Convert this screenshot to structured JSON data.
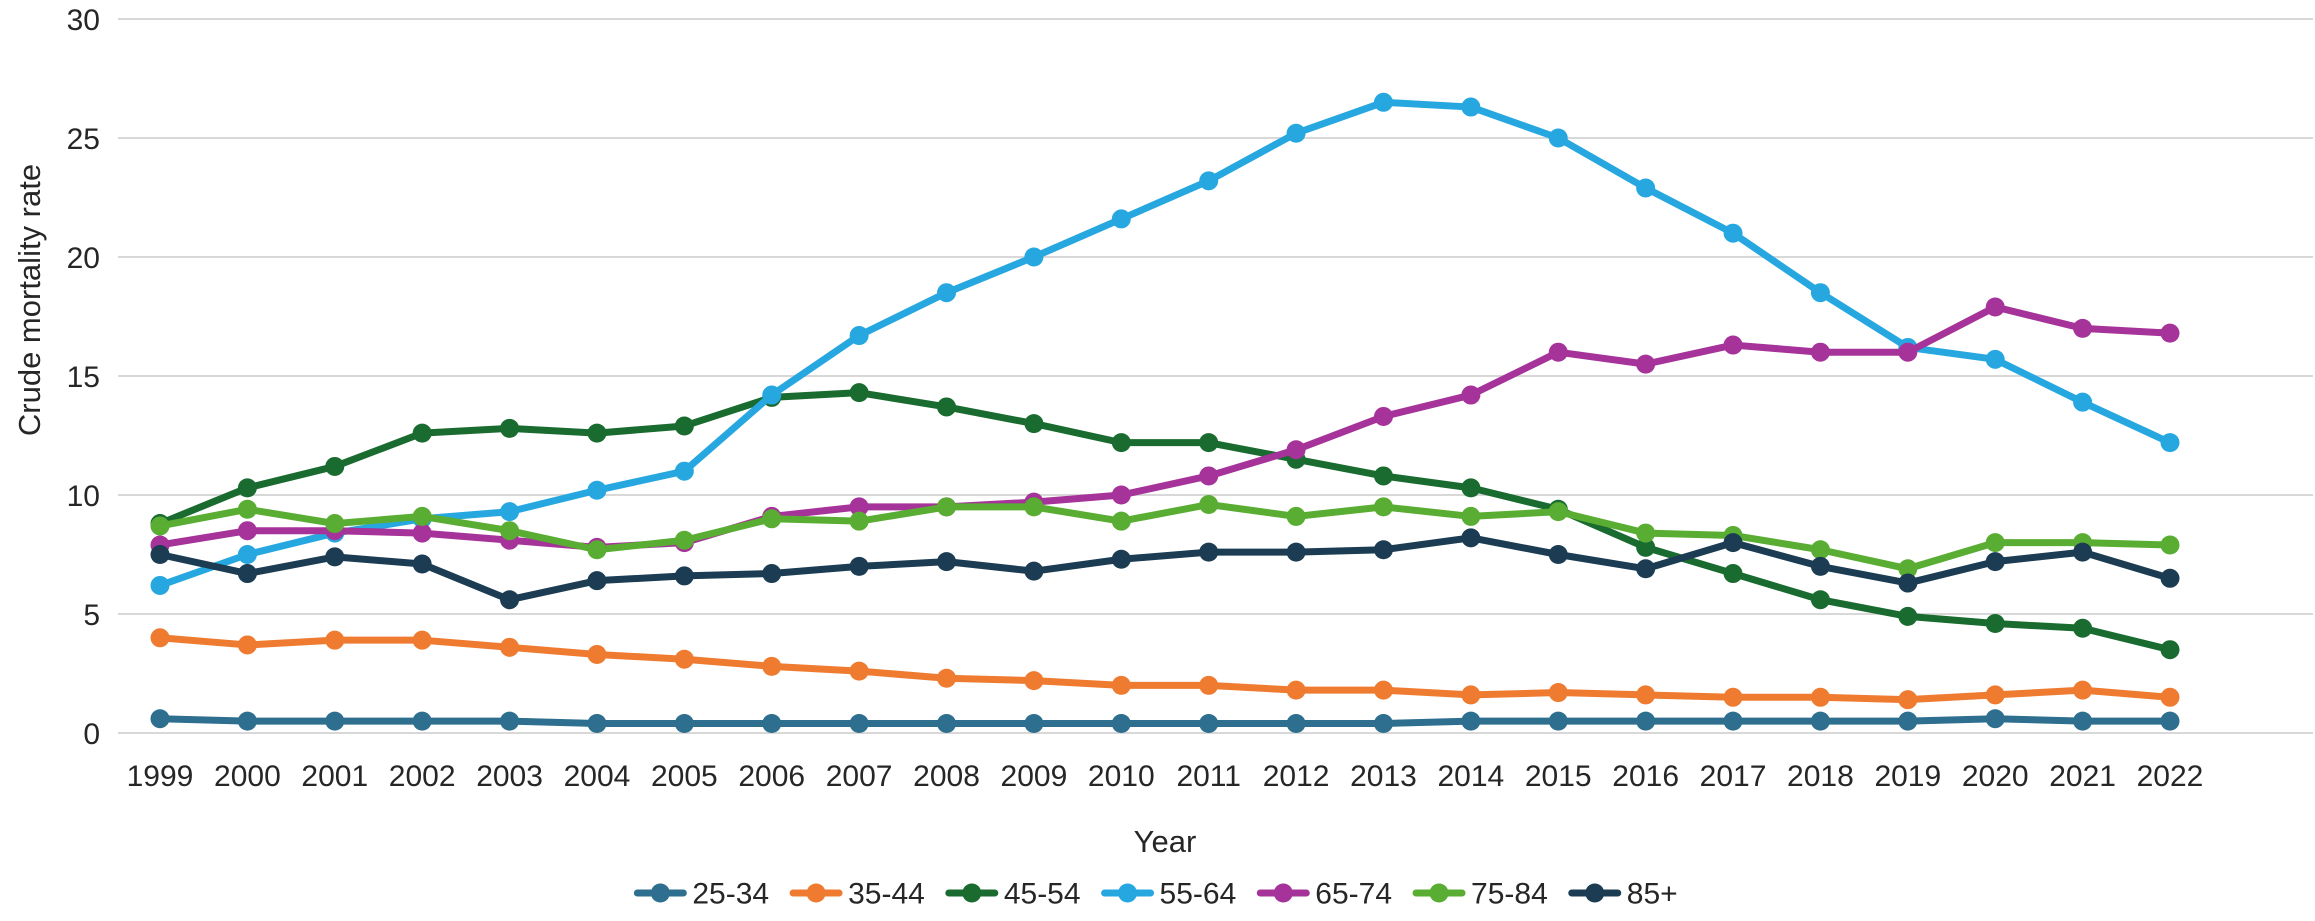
{
  "chart_data": {
    "type": "line",
    "title": "",
    "xlabel": "Year",
    "ylabel": "Crude mortality rate",
    "ylim": [
      0,
      30
    ],
    "yticks": [
      0,
      5,
      10,
      15,
      20,
      25,
      30
    ],
    "grid": "horizontal",
    "legend_position": "bottom-center",
    "x": [
      1999,
      2000,
      2001,
      2002,
      2003,
      2004,
      2005,
      2006,
      2007,
      2008,
      2009,
      2010,
      2011,
      2012,
      2013,
      2014,
      2015,
      2016,
      2017,
      2018,
      2019,
      2020,
      2021,
      2022
    ],
    "series": [
      {
        "name": "25-34",
        "color": "#2e6e8e",
        "values": [
          0.6,
          0.5,
          0.5,
          0.5,
          0.5,
          0.4,
          0.4,
          0.4,
          0.4,
          0.4,
          0.4,
          0.4,
          0.4,
          0.4,
          0.4,
          0.5,
          0.5,
          0.5,
          0.5,
          0.5,
          0.5,
          0.6,
          0.5,
          0.5
        ]
      },
      {
        "name": "35-44",
        "color": "#ee7b30",
        "values": [
          4.0,
          3.7,
          3.9,
          3.9,
          3.6,
          3.3,
          3.1,
          2.8,
          2.6,
          2.3,
          2.2,
          2.0,
          2.0,
          1.8,
          1.8,
          1.6,
          1.7,
          1.6,
          1.5,
          1.5,
          1.4,
          1.6,
          1.8,
          1.5
        ]
      },
      {
        "name": "45-54",
        "color": "#1a6b2f",
        "values": [
          8.8,
          10.3,
          11.2,
          12.6,
          12.8,
          12.6,
          12.9,
          14.1,
          14.3,
          13.7,
          13.0,
          12.2,
          12.2,
          11.5,
          10.8,
          10.3,
          9.4,
          7.8,
          6.7,
          5.6,
          4.9,
          4.6,
          4.4,
          3.5
        ]
      },
      {
        "name": "55-64",
        "color": "#27a7e0",
        "values": [
          6.2,
          7.5,
          8.4,
          9.0,
          9.3,
          10.2,
          11.0,
          14.2,
          16.7,
          18.5,
          20.0,
          21.6,
          23.2,
          25.2,
          26.5,
          26.3,
          25.0,
          22.9,
          21.0,
          18.5,
          16.2,
          15.7,
          13.9,
          12.2
        ]
      },
      {
        "name": "65-74",
        "color": "#a53399",
        "values": [
          7.9,
          8.5,
          8.5,
          8.4,
          8.1,
          7.8,
          8.0,
          9.1,
          9.5,
          9.5,
          9.7,
          10.0,
          10.8,
          11.9,
          13.3,
          14.2,
          16.0,
          15.5,
          16.3,
          16.0,
          16.0,
          17.9,
          17.0,
          16.8
        ]
      },
      {
        "name": "75-84",
        "color": "#59ad32",
        "values": [
          8.7,
          9.4,
          8.8,
          9.1,
          8.5,
          7.7,
          8.1,
          9.0,
          8.9,
          9.5,
          9.5,
          8.9,
          9.6,
          9.1,
          9.5,
          9.1,
          9.3,
          8.4,
          8.3,
          7.7,
          6.9,
          8.0,
          8.0,
          7.9
        ]
      },
      {
        "name": "85+",
        "color": "#1b3c52",
        "values": [
          7.5,
          6.7,
          7.4,
          7.1,
          5.6,
          6.4,
          6.6,
          6.7,
          7.0,
          7.2,
          6.8,
          7.3,
          7.6,
          7.6,
          7.7,
          8.2,
          7.5,
          6.9,
          8.0,
          7.0,
          6.3,
          7.2,
          7.6,
          6.5
        ]
      }
    ]
  },
  "colors": {
    "grid": "#d8d8d8",
    "text": "#262626",
    "background": "#ffffff"
  }
}
